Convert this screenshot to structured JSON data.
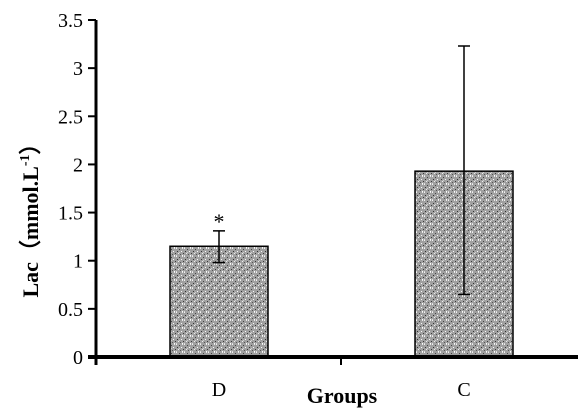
{
  "chart_data": {
    "type": "bar",
    "categories": [
      "D",
      "C"
    ],
    "values": [
      1.15,
      1.93
    ],
    "error_low": [
      0.98,
      0.65
    ],
    "error_high": [
      1.31,
      3.23
    ],
    "annotations": [
      "*",
      ""
    ],
    "xlabel": "Groups",
    "ylabel": "Lac（mmol.L",
    "ylabel_superscript": "-1",
    "ylabel_close": "）",
    "ylim": [
      0,
      3.5
    ],
    "yticks": [
      "0",
      "0.5",
      "1",
      "1.5",
      "2",
      "2.5",
      "3",
      "3.5"
    ],
    "grid": false,
    "legend": "none",
    "bar_fill": "#9a9a9a",
    "bar_stroke": "#000000"
  }
}
